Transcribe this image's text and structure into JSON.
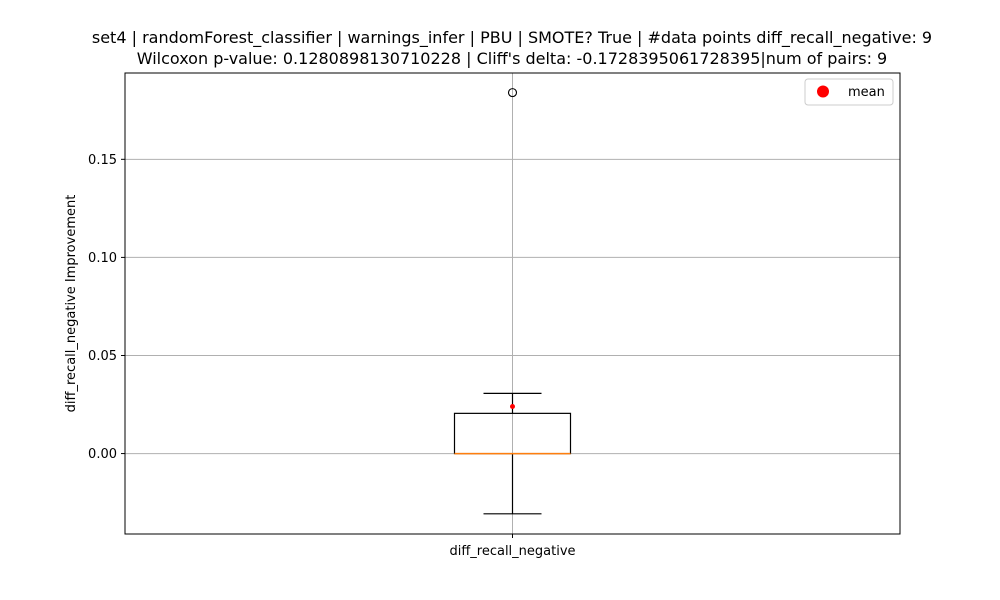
{
  "chart_data": {
    "type": "box",
    "title_line1": "set4 | randomForest_classifier | warnings_infer | PBU | SMOTE? True | #data points diff_recall_negative: 9",
    "title_line2": "Wilcoxon p-value: 0.1280898130710228 | Cliff's delta: -0.1728395061728395|num of pairs: 9",
    "xlabel": "",
    "ylabel": "diff_recall_negative Improvement",
    "categories": [
      "diff_recall_negative"
    ],
    "ylim": [
      -0.041,
      0.194
    ],
    "yticks": [
      0.0,
      0.05,
      0.1,
      0.15
    ],
    "ytick_labels": [
      "0.00",
      "0.05",
      "0.10",
      "0.15"
    ],
    "grid": true,
    "legend": {
      "position": "top-right",
      "entries": [
        {
          "label": "mean",
          "color": "#ff0000"
        }
      ]
    },
    "box": {
      "whisker_low": -0.0307,
      "q1": 0.0,
      "median": 0.0,
      "q3": 0.0205,
      "whisker_high": 0.0307,
      "mean": 0.024,
      "outliers": [
        0.184
      ]
    },
    "colors": {
      "box": "#000000",
      "median": "#ff7f0e",
      "mean": "#ff0000",
      "grid": "#b0b0b0",
      "outlier": "#000000"
    }
  }
}
